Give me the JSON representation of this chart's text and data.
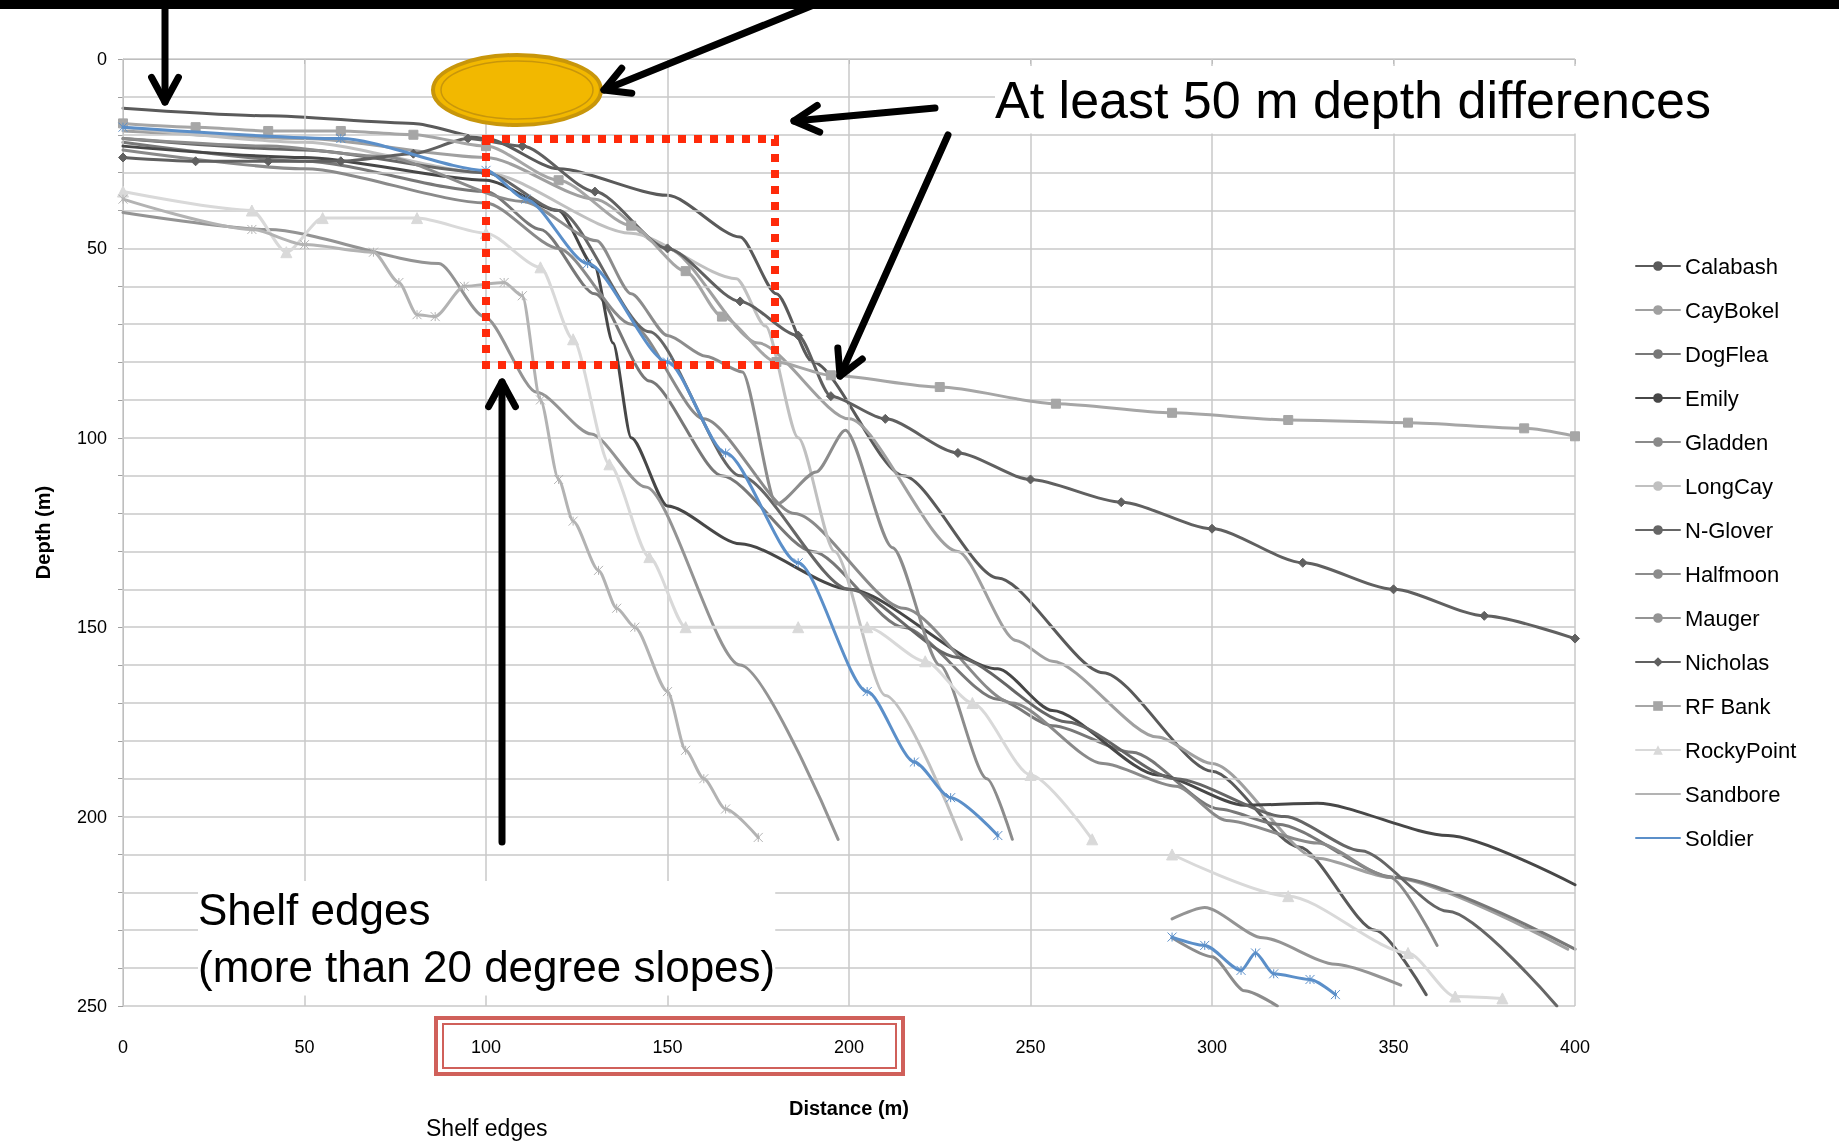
{
  "chart_data": {
    "type": "line",
    "xlabel": "Distance (m)",
    "ylabel": "Depth (m)",
    "xlim": [
      0,
      400
    ],
    "xticks": [
      0,
      50,
      100,
      150,
      200,
      250,
      300,
      350,
      400
    ],
    "ylim": [
      250,
      0
    ],
    "yticks": [
      0,
      {
        "value": 10,
        "label": null
      },
      {
        "value": 20,
        "label": null
      },
      {
        "value": 30,
        "label": null
      },
      {
        "value": 40,
        "label": null
      },
      50,
      {
        "value": 60,
        "label": null
      },
      {
        "value": 70,
        "label": null
      },
      {
        "value": 80,
        "label": null
      },
      {
        "value": 90,
        "label": null
      },
      100,
      {
        "value": 110,
        "label": null
      },
      {
        "value": 120,
        "label": null
      },
      {
        "value": 130,
        "label": null
      },
      {
        "value": 140,
        "label": null
      },
      150,
      {
        "value": 160,
        "label": null
      },
      {
        "value": 170,
        "label": null
      },
      {
        "value": 180,
        "label": null
      },
      {
        "value": 190,
        "label": null
      },
      200,
      {
        "value": 210,
        "label": null
      },
      {
        "value": 220,
        "label": null
      },
      {
        "value": 230,
        "label": null
      },
      {
        "value": 240,
        "label": null
      },
      250
    ],
    "grid": true,
    "legend": "right",
    "marker": "none",
    "line_style": "solid",
    "annotations": [
      "At least 50 m depth differences",
      "Shelf edges\n(more than 20 degree slopes)",
      "Shelf edges"
    ],
    "series": [
      {
        "name": "Calabash",
        "color": "#5a5a5a",
        "x": [
          0,
          40,
          80,
          100,
          120,
          150,
          170,
          180,
          190,
          215,
          241,
          270,
          300,
          324,
          345,
          359
        ],
        "values": [
          13,
          15,
          17,
          21,
          29,
          36,
          47,
          62,
          80,
          110,
          137,
          162,
          188,
          208,
          230,
          247
        ]
      },
      {
        "name": "CayBokel",
        "color": "#a0a0a0",
        "x": [
          0,
          50,
          100,
          130,
          150,
          175,
          200,
          230,
          246,
          256,
          285,
          300,
          329,
          349,
          398
        ],
        "values": [
          19,
          21,
          26,
          37,
          50,
          75,
          95,
          130,
          153.5,
          159,
          179,
          186,
          211,
          216,
          235
        ]
      },
      {
        "name": "DogFlea",
        "color": "#787878",
        "x": [
          0,
          50,
          100,
          115,
          130,
          145,
          165,
          190,
          215,
          241,
          256,
          278,
          302,
          318,
          350,
          400
        ],
        "values": [
          22,
          27,
          35,
          45,
          62,
          85,
          110,
          130,
          150,
          169,
          176,
          183,
          198,
          202,
          216,
          235
        ]
      },
      {
        "name": "Emily",
        "color": "#474747",
        "x": [
          0,
          50,
          100,
          120,
          130,
          135,
          140,
          150,
          170,
          200,
          241,
          256,
          285,
          309,
          329,
          365,
          400
        ],
        "values": [
          23,
          26,
          32,
          40,
          55,
          75,
          100,
          118,
          128,
          140,
          161,
          172,
          189,
          197,
          196.5,
          205,
          218
        ]
      },
      {
        "name": "Gladden",
        "color": "#8a8a8a",
        "x": [
          0,
          50,
          100,
          120,
          140,
          160,
          185,
          215,
          245,
          270,
          290,
          304,
          329,
          349,
          362
        ],
        "values": [
          24,
          29,
          38,
          50,
          70,
          95,
          120,
          145,
          170,
          186,
          192,
          201,
          207,
          216,
          234
        ]
      },
      {
        "name": "LongCay",
        "color": "#c0c0c0",
        "x": [
          0,
          50,
          100,
          140,
          169,
          177,
          186,
          196,
          210,
          231
        ],
        "values": [
          18,
          22,
          30,
          46,
          58,
          70.5,
          100,
          130,
          168,
          206
        ]
      },
      {
        "name": "N-Glover",
        "color": "#666666",
        "x": [
          0,
          50,
          100,
          120,
          145,
          170,
          200,
          230,
          260,
          290,
          320,
          341,
          365,
          395
        ],
        "values": [
          21,
          24,
          30,
          40,
          72,
          110,
          140,
          158,
          175,
          190,
          200,
          209,
          225,
          250
        ]
      },
      {
        "name": "Halfmoon",
        "color": "#8c8c8c",
        "x": [
          0,
          40,
          71,
          110,
          130.5,
          140,
          150,
          160.6,
          170.6,
          180,
          191,
          199,
          212,
          225,
          238,
          245,
          270,
          289,
          300,
          309,
          318
        ],
        "values": [
          21,
          23,
          25.7,
          37.6,
          48,
          62,
          73,
          78.5,
          82.6,
          117.5,
          109,
          98,
          129,
          160,
          190,
          206,
          null,
          232,
          237,
          246,
          250
        ]
      },
      {
        "name": "Mauger",
        "color": "#949494",
        "x": [
          0,
          40,
          87,
          99.5,
          114,
          129,
          144,
          170,
          197,
          240,
          289,
          298,
          314,
          334,
          352
        ],
        "values": [
          40.5,
          45,
          54,
          68,
          88,
          99,
          113,
          160,
          206,
          null,
          227,
          224,
          232,
          239,
          244.5
        ]
      },
      {
        "name": "Nicholas",
        "color": "#606060",
        "marker": "diamond",
        "x": [
          0,
          20,
          40,
          60,
          80,
          95,
          110,
          130,
          150,
          170,
          186,
          195,
          210,
          230,
          250,
          275,
          300,
          325,
          350,
          375,
          400
        ],
        "values": [
          26,
          27,
          27,
          27,
          25,
          21,
          23,
          35,
          50,
          64,
          73,
          89,
          95,
          104,
          111,
          117,
          124,
          133,
          140,
          147,
          153
        ]
      },
      {
        "name": "RF Bank",
        "color": "#a6a6a6",
        "marker": "square",
        "x": [
          0,
          20,
          40,
          60,
          80,
          100,
          120,
          140,
          155,
          165,
          180,
          195,
          225,
          257,
          289,
          321,
          354,
          386,
          400
        ],
        "values": [
          17,
          18,
          19,
          19,
          20,
          23,
          32,
          44,
          56,
          68,
          80,
          83.5,
          86.6,
          91,
          93.4,
          95.3,
          96,
          97.5,
          99.6
        ]
      },
      {
        "name": "RockyPoint",
        "color": "#d9d9d9",
        "marker": "triangle",
        "x": [
          0,
          35.5,
          45,
          55,
          81,
          100,
          115,
          124,
          134,
          145,
          155,
          186,
          205,
          221,
          234,
          250,
          267,
          278,
          289,
          321,
          354,
          367,
          380
        ],
        "values": [
          35,
          40,
          51,
          42,
          42,
          46,
          55,
          74,
          107,
          131.5,
          150,
          150,
          150,
          159,
          170,
          189,
          206,
          null,
          210,
          221,
          236,
          247.5,
          248
        ]
      },
      {
        "name": "Sandbore",
        "color": "#b3b3b3",
        "marker": "cross",
        "x": [
          0,
          35.5,
          50,
          69,
          76,
          81,
          86,
          94,
          105,
          110,
          115,
          120,
          124,
          131,
          136,
          141,
          150,
          155,
          160,
          166,
          175
        ],
        "values": [
          37,
          45,
          49,
          51,
          59,
          67.5,
          68,
          60,
          59,
          62.5,
          90,
          111,
          122,
          135,
          145,
          150,
          167,
          182.5,
          190,
          198,
          205.5
        ]
      },
      {
        "name": "Soldier",
        "color": "#5b8fc9",
        "marker": "cross",
        "x": [
          0,
          60,
          100,
          111,
          128,
          150,
          166,
          186,
          205,
          218,
          228,
          241,
          260,
          289,
          298,
          308,
          312,
          317,
          327,
          334
        ],
        "values": [
          18,
          21,
          29.4,
          37,
          54,
          80,
          104,
          133,
          167,
          185.6,
          195,
          205,
          null,
          231.8,
          234,
          240.6,
          236,
          241.5,
          243,
          247
        ]
      }
    ]
  }
}
